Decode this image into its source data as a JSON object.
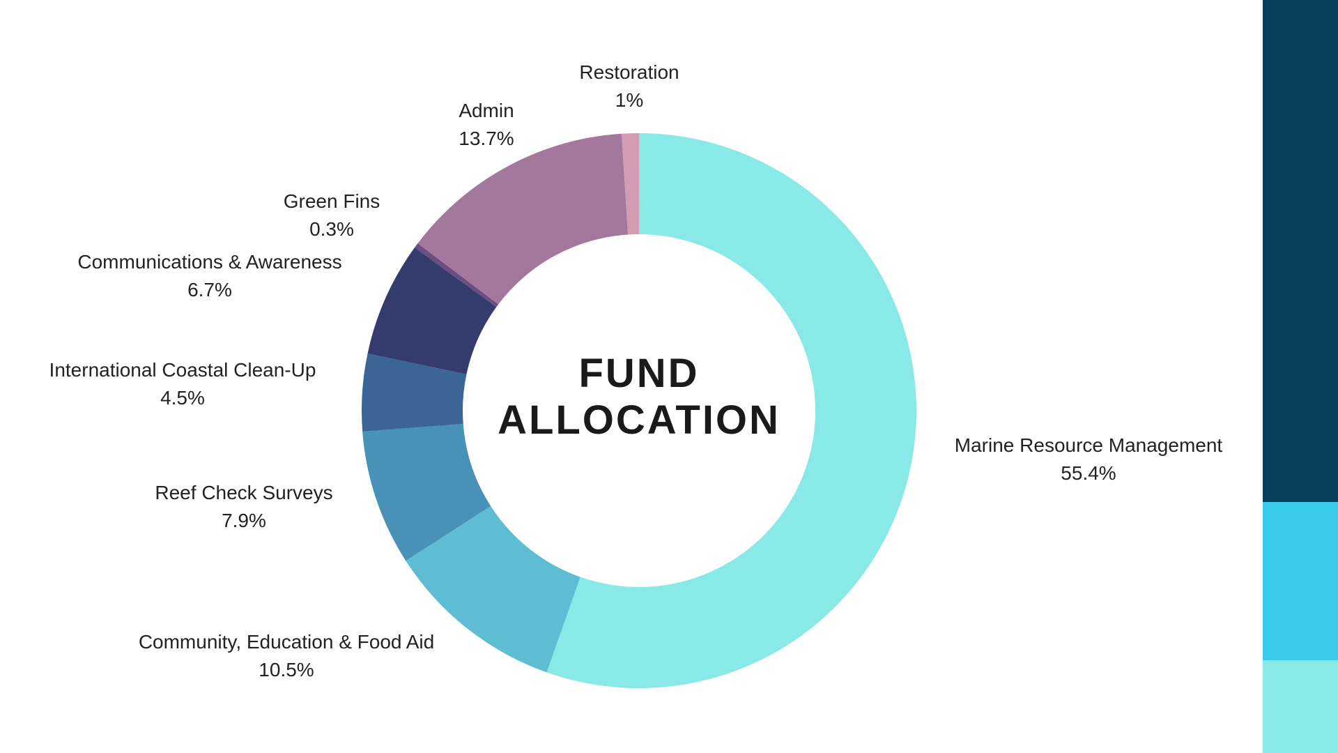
{
  "chart_data": {
    "type": "pie",
    "donut": true,
    "title": "FUND ALLOCATION",
    "title_lines": [
      "FUND",
      "ALLOCATION"
    ],
    "slices": [
      {
        "label": "Marine Resource Management",
        "percent_text": "55.4%",
        "value": 55.4,
        "color": "#88E9E7"
      },
      {
        "label": "Community, Education & Food Aid",
        "percent_text": "10.5%",
        "value": 10.5,
        "color": "#5EBDD3"
      },
      {
        "label": "Reef Check Surveys",
        "percent_text": "7.9%",
        "value": 7.9,
        "color": "#4892B8"
      },
      {
        "label": "International Coastal Clean-Up",
        "percent_text": "4.5%",
        "value": 4.5,
        "color": "#3B6594"
      },
      {
        "label": "Communications & Awareness",
        "percent_text": "6.7%",
        "value": 6.7,
        "color": "#343B6D"
      },
      {
        "label": "Green Fins",
        "percent_text": "0.3%",
        "value": 0.3,
        "color": "#6B4E82"
      },
      {
        "label": "Admin",
        "percent_text": "13.7%",
        "value": 13.7,
        "color": "#A4789C"
      },
      {
        "label": "Restoration",
        "percent_text": "1%",
        "value": 1,
        "color": "#D49BB4"
      }
    ],
    "start_angle": "top",
    "direction": "clockwise"
  },
  "decor": {
    "side_bar_colors": [
      "#083F5C",
      "#39CAEC",
      "#88E9E7"
    ]
  }
}
